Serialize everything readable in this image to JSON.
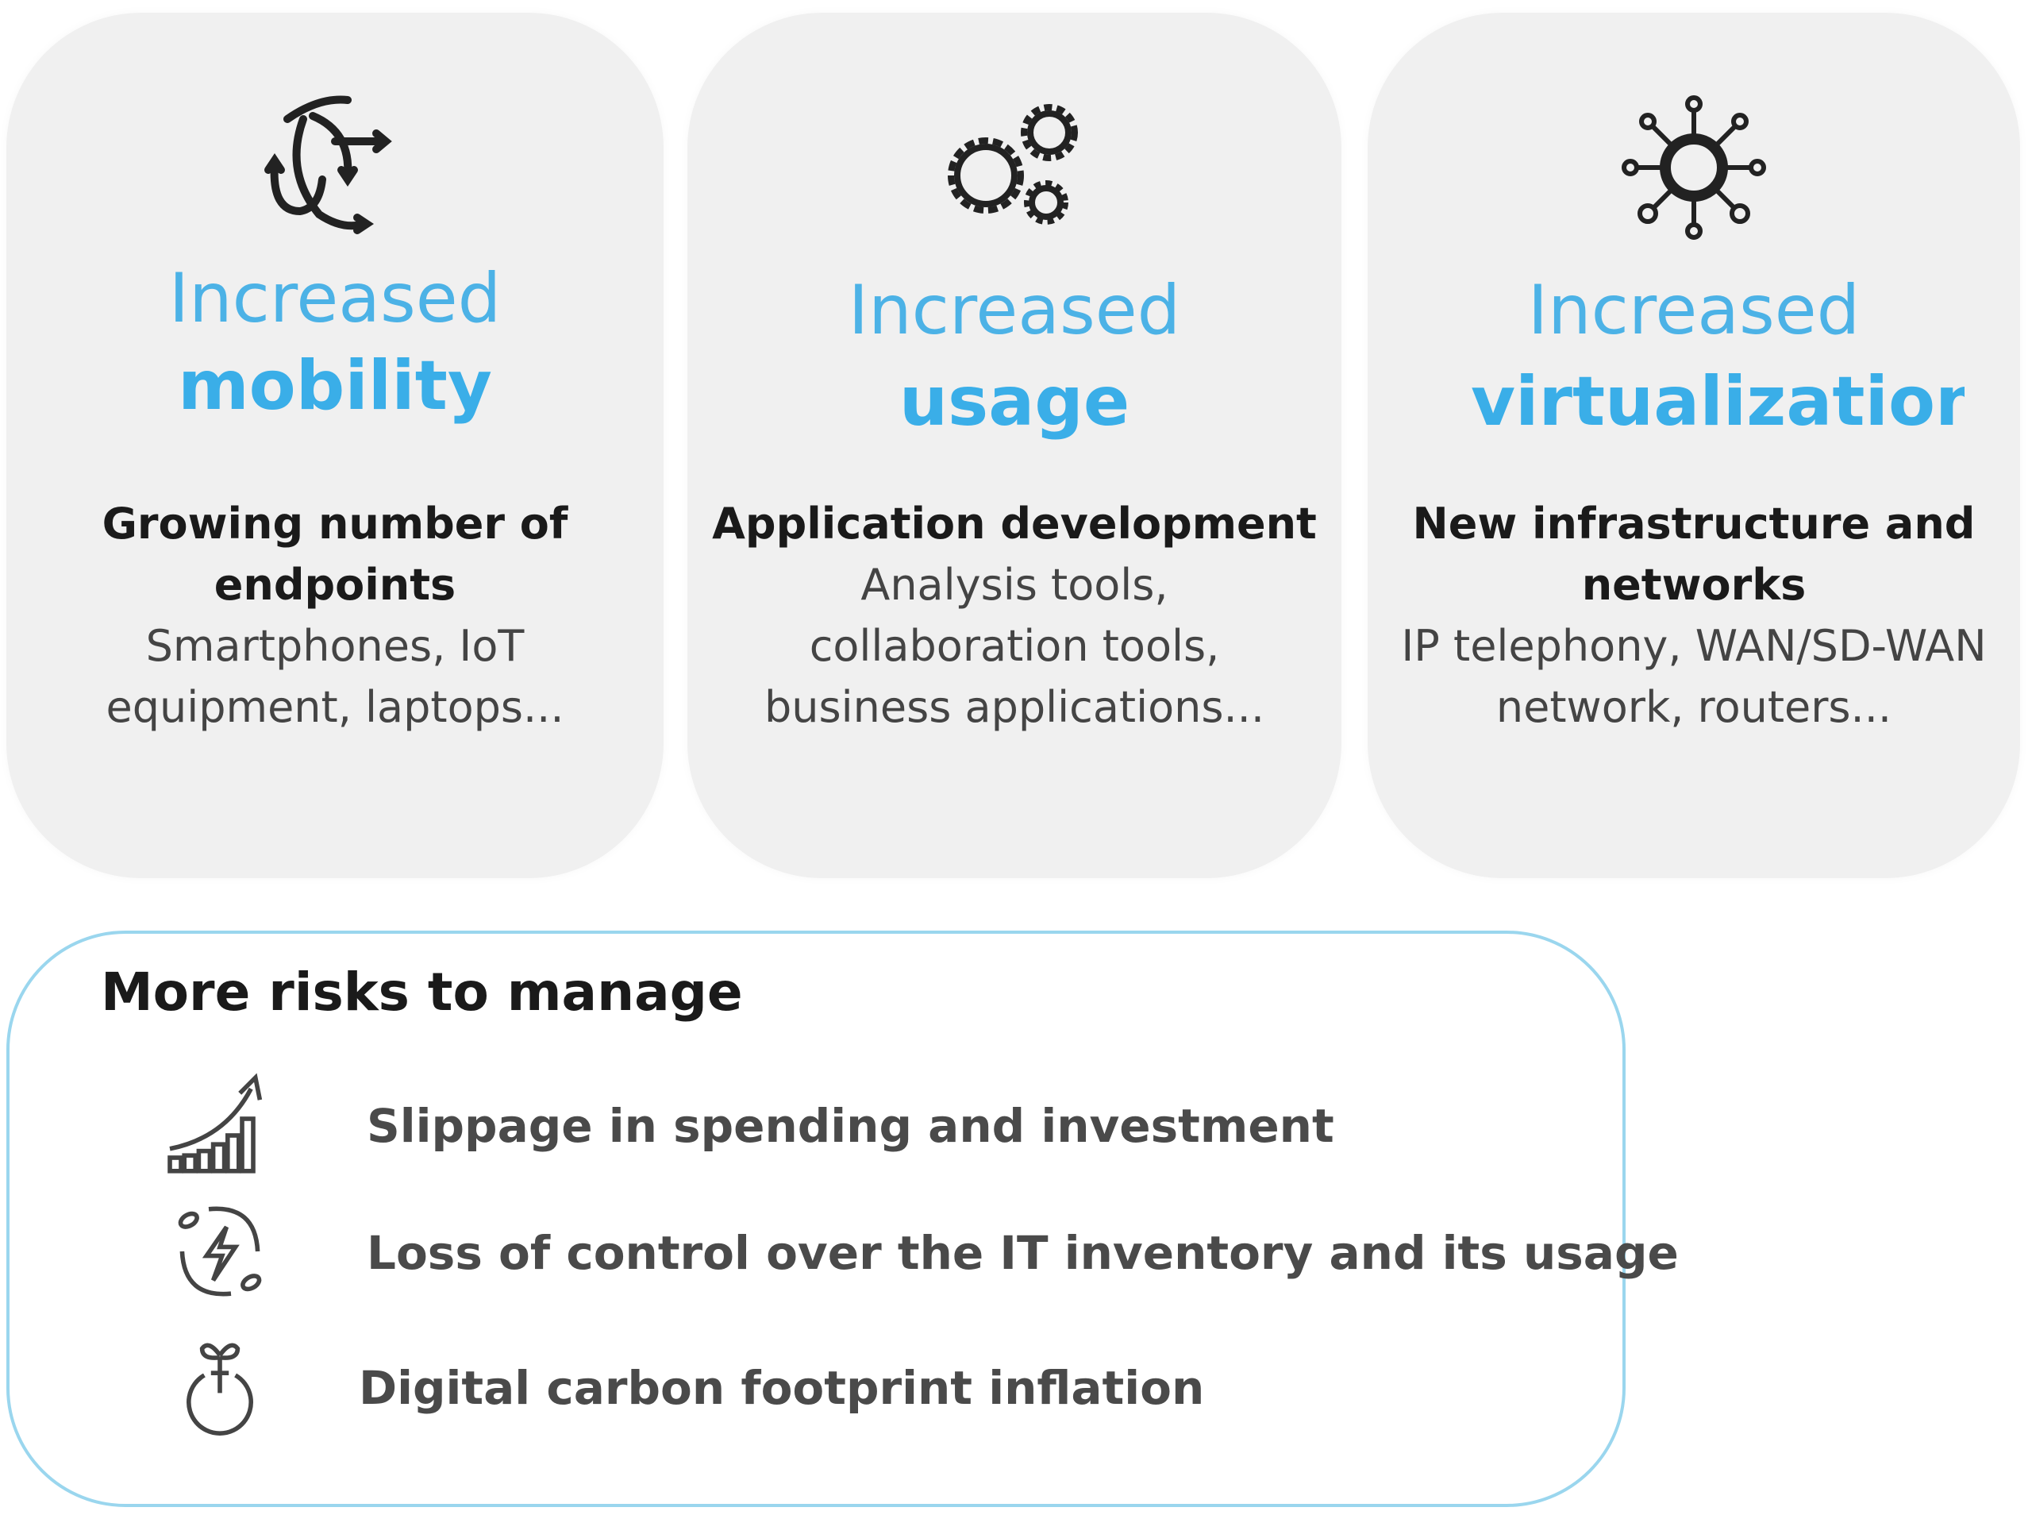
{
  "cards": [
    {
      "icon": "mobility-arrows-icon",
      "title_light": "Increased",
      "title_bold": "mobility",
      "heading_lines": [
        "Growing number of",
        "endpoints"
      ],
      "detail_lines": [
        "Smartphones, IoT",
        "equipment, laptops..."
      ]
    },
    {
      "icon": "gears-icon",
      "title_light": "Increased",
      "title_bold": "usage",
      "heading_lines": [
        "Application development"
      ],
      "detail_lines": [
        "Analysis tools,",
        "collaboration tools,",
        "business applications..."
      ]
    },
    {
      "icon": "network-hub-icon",
      "title_light": "Increased",
      "title_bold": "virtualization",
      "heading_lines": [
        "New infrastructure and",
        "networks"
      ],
      "detail_lines": [
        "IP telephony, WAN/SD-WAN",
        "network, routers..."
      ]
    }
  ],
  "risks": {
    "title": "More risks to manage",
    "items": [
      {
        "icon": "rising-chart-icon",
        "label": "Slippage in spending and investment"
      },
      {
        "icon": "energy-cycle-icon",
        "label": "Loss of control over the IT inventory and its usage"
      },
      {
        "icon": "sprout-icon",
        "label": "Digital carbon footprint inflation"
      }
    ]
  },
  "colors": {
    "accent": "#3aaee8",
    "card_bg": "#f0f0f0",
    "border": "#9ad6ee"
  }
}
